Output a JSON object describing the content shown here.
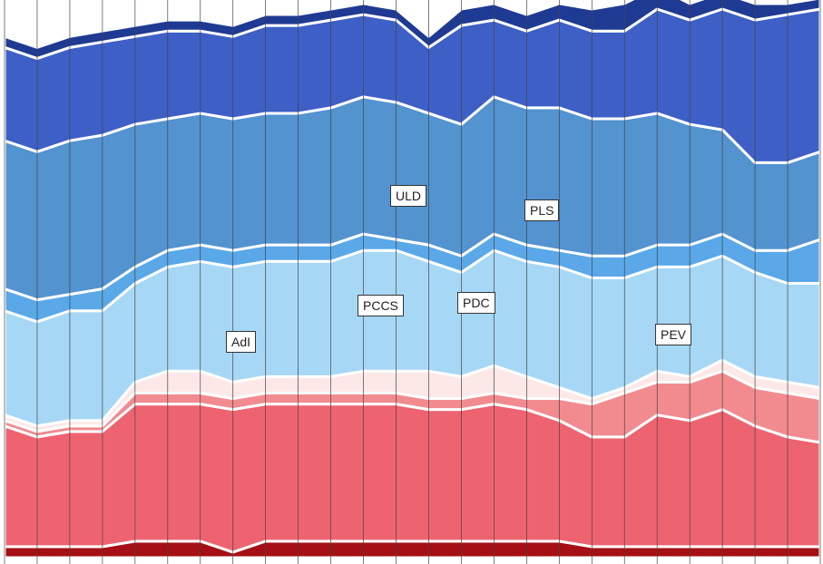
{
  "chart_data": {
    "type": "stacked-area",
    "categories": [
      null,
      null,
      null,
      null,
      null,
      null,
      null,
      null,
      null,
      null,
      null,
      null,
      null,
      null,
      null,
      null,
      null,
      null,
      null,
      null,
      null,
      null,
      null,
      null,
      null,
      null
    ],
    "ylim": [
      0,
      100
    ],
    "grid": true,
    "annotations": [
      "ULD",
      "PLS",
      "PCCS",
      "PDC",
      "AdI",
      "PEV"
    ],
    "series": [
      {
        "color": "#a50f15",
        "values": [
          2,
          2,
          2,
          2,
          3,
          3,
          3,
          1,
          3,
          3,
          3,
          3,
          3,
          3,
          3,
          3,
          3,
          3,
          2,
          2,
          2,
          2,
          2,
          2,
          2,
          2
        ]
      },
      {
        "color": "#ee6370",
        "values": [
          22,
          20,
          21,
          21,
          25,
          25,
          25,
          26,
          25,
          25,
          25,
          25,
          25,
          24,
          24,
          25,
          24,
          22,
          20,
          20,
          24,
          23,
          25,
          22,
          20,
          19
        ]
      },
      {
        "color": "#f28b8f",
        "values": [
          1,
          1,
          1,
          1,
          2,
          2,
          2,
          2,
          2,
          2,
          2,
          2,
          2,
          2,
          2,
          2,
          2,
          4,
          6,
          8,
          6,
          7,
          7,
          7,
          8,
          8
        ]
      },
      {
        "color": "#fde8e8",
        "values": [
          1,
          1,
          1,
          1,
          2,
          4,
          4,
          3,
          3,
          3,
          3,
          4,
          4,
          5,
          4,
          5,
          4,
          2,
          1,
          1,
          2,
          1,
          2,
          2,
          2,
          2
        ]
      },
      {
        "color": "#a6d8f5",
        "values": [
          19,
          19,
          20,
          20,
          18,
          19,
          20,
          21,
          21,
          21,
          21,
          22,
          22,
          20,
          19,
          21,
          21,
          22,
          22,
          20,
          19,
          20,
          19,
          19,
          18,
          19
        ]
      },
      {
        "color": "#5aa8e8",
        "values": [
          4,
          4,
          3,
          4,
          3,
          3,
          3,
          3,
          3,
          3,
          3,
          3,
          2,
          3,
          3,
          3,
          3,
          3,
          4,
          4,
          4,
          4,
          4,
          4,
          6,
          8
        ]
      },
      {
        "color": "#5393d0",
        "values": [
          27,
          27,
          28,
          28,
          26,
          24,
          24,
          24,
          24,
          24,
          25,
          25,
          25,
          24,
          24,
          25,
          25,
          26,
          25,
          25,
          24,
          22,
          19,
          16,
          16,
          16
        ]
      },
      {
        "color": "#3e5fc6",
        "values": [
          17,
          17,
          17,
          17,
          16,
          16,
          15,
          15,
          16,
          16,
          16,
          15,
          15,
          12,
          18,
          14,
          14,
          16,
          16,
          16,
          19,
          19,
          22,
          26,
          27,
          26
        ]
      },
      {
        "color": "#1f3a93",
        "values": [
          2,
          2,
          2,
          2,
          2,
          2,
          2,
          2,
          2,
          2,
          2,
          2,
          2,
          2,
          3,
          3,
          3,
          3,
          4,
          5,
          4,
          3,
          3,
          3,
          2,
          2
        ]
      }
    ]
  }
}
